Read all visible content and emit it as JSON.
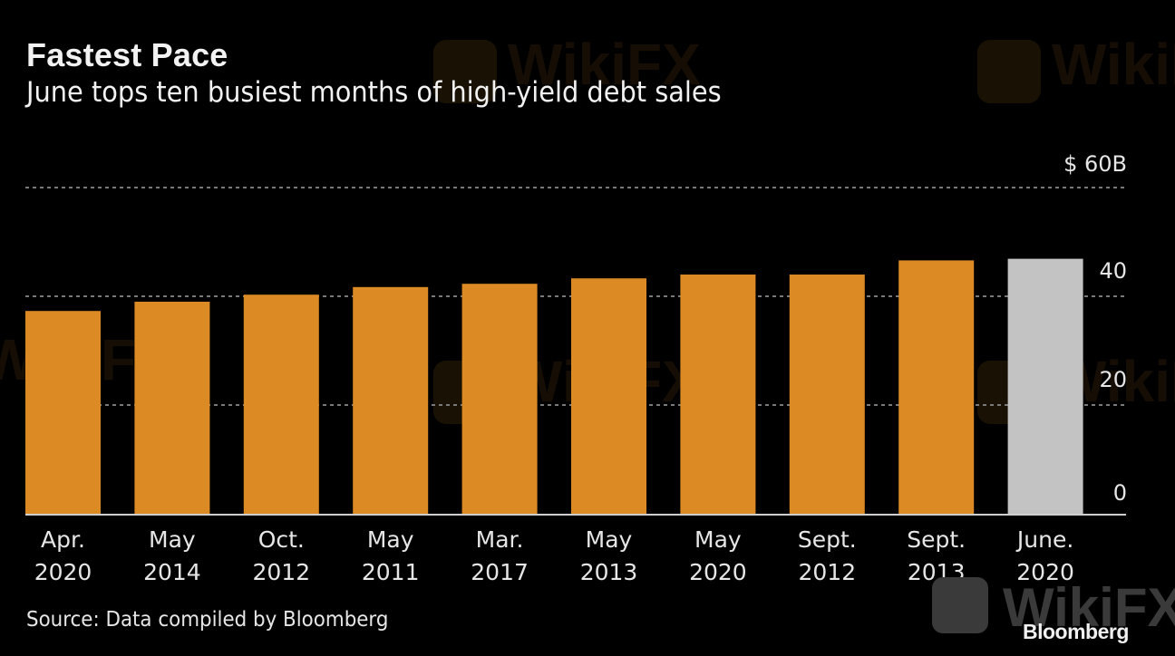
{
  "title": "Fastest Pace",
  "subtitle": "June tops ten busiest months of high-yield debt sales",
  "source": "Source: Data compiled by Bloomberg",
  "brand": "Bloomberg",
  "watermark": "WikiFX",
  "colors": {
    "bar": "#dc8a24",
    "highlight_bar": "#c3c3c3",
    "background": "#000000",
    "gridline": "#7a7a7a",
    "text": "#e6e6e6"
  },
  "chart_data": {
    "type": "bar",
    "title": "Fastest Pace",
    "subtitle": "June tops ten busiest months of high-yield debt sales",
    "xlabel": "",
    "ylabel": "",
    "y_unit_label": "$ 60B",
    "ylim": [
      0,
      60
    ],
    "yticks": [
      0,
      20,
      40,
      60
    ],
    "ytick_labels": [
      "0",
      "20",
      "40",
      "$ 60B"
    ],
    "grid": true,
    "y_axis_side": "right",
    "categories": [
      [
        "Apr.",
        "2020"
      ],
      [
        "May",
        "2014"
      ],
      [
        "Oct.",
        "2012"
      ],
      [
        "May",
        "2011"
      ],
      [
        "Mar.",
        "2017"
      ],
      [
        "May",
        "2013"
      ],
      [
        "May",
        "2020"
      ],
      [
        "Sept.",
        "2012"
      ],
      [
        "Sept.",
        "2013"
      ],
      [
        "June.",
        "2020"
      ]
    ],
    "values": [
      37.3,
      39.0,
      40.3,
      41.7,
      42.3,
      43.3,
      44.0,
      44.0,
      46.6,
      46.9
    ],
    "highlight_index": 9,
    "source": "Source: Data compiled by Bloomberg"
  }
}
